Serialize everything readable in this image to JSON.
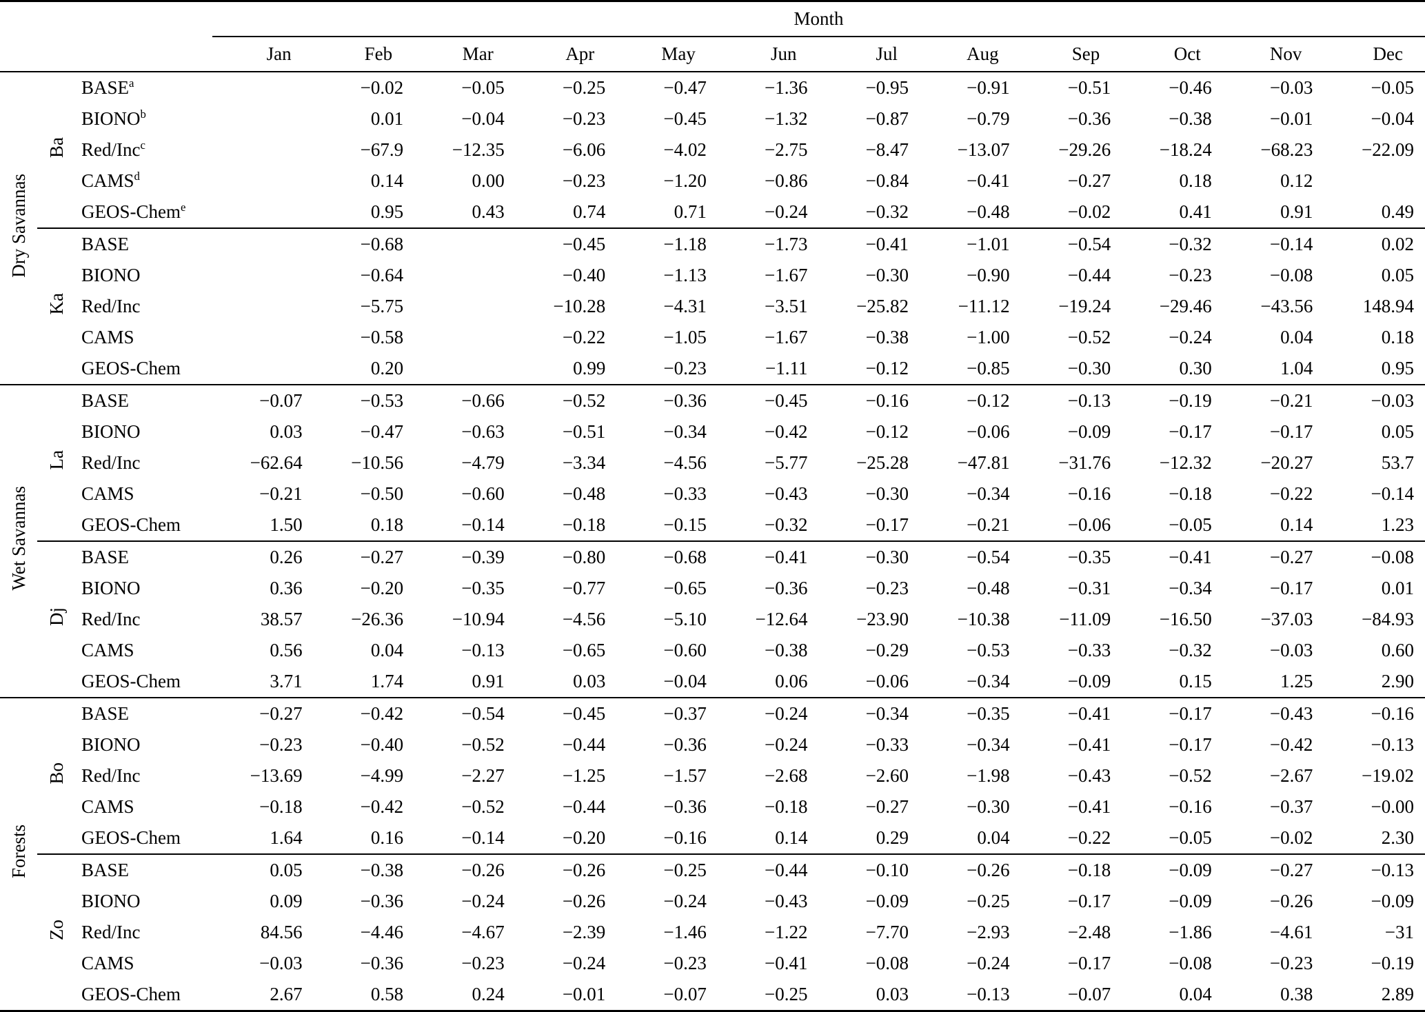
{
  "table": {
    "month_header": "Month",
    "columns": [
      "Jan",
      "Feb",
      "Mar",
      "Apr",
      "May",
      "Jun",
      "Jul",
      "Aug",
      "Sep",
      "Oct",
      "Nov",
      "Dec"
    ],
    "groups": [
      {
        "label": "Dry Savannas",
        "sites": [
          {
            "label": "Ba",
            "rows": [
              {
                "label": "BASE",
                "sup": "a",
                "values": [
                  "",
                  "−0.02",
                  "−0.05",
                  "−0.25",
                  "−0.47",
                  "−1.36",
                  "−0.95",
                  "−0.91",
                  "−0.51",
                  "−0.46",
                  "−0.03",
                  "−0.05"
                ]
              },
              {
                "label": "BIONO",
                "sup": "b",
                "values": [
                  "",
                  "0.01",
                  "−0.04",
                  "−0.23",
                  "−0.45",
                  "−1.32",
                  "−0.87",
                  "−0.79",
                  "−0.36",
                  "−0.38",
                  "−0.01",
                  "−0.04"
                ]
              },
              {
                "label": "Red/Inc",
                "sup": "c",
                "values": [
                  "",
                  "−67.9",
                  "−12.35",
                  "−6.06",
                  "−4.02",
                  "−2.75",
                  "−8.47",
                  "−13.07",
                  "−29.26",
                  "−18.24",
                  "−68.23",
                  "−22.09"
                ]
              },
              {
                "label": "CAMS",
                "sup": "d",
                "values": [
                  "",
                  "0.14",
                  "0.00",
                  "−0.23",
                  "−1.20",
                  "−0.86",
                  "−0.84",
                  "−0.41",
                  "−0.27",
                  "0.18",
                  "0.12",
                  ""
                ]
              },
              {
                "label": "GEOS-Chem",
                "sup": "e",
                "values": [
                  "",
                  "0.95",
                  "0.43",
                  "0.74",
                  "0.71",
                  "−0.24",
                  "−0.32",
                  "−0.48",
                  "−0.02",
                  "0.41",
                  "0.91",
                  "0.49"
                ]
              }
            ]
          },
          {
            "label": "Ka",
            "rows": [
              {
                "label": "BASE",
                "values": [
                  "",
                  "−0.68",
                  "",
                  "−0.45",
                  "−1.18",
                  "−1.73",
                  "−0.41",
                  "−1.01",
                  "−0.54",
                  "−0.32",
                  "−0.14",
                  "0.02"
                ]
              },
              {
                "label": "BIONO",
                "values": [
                  "",
                  "−0.64",
                  "",
                  "−0.40",
                  "−1.13",
                  "−1.67",
                  "−0.30",
                  "−0.90",
                  "−0.44",
                  "−0.23",
                  "−0.08",
                  "0.05"
                ]
              },
              {
                "label": "Red/Inc",
                "values": [
                  "",
                  "−5.75",
                  "",
                  "−10.28",
                  "−4.31",
                  "−3.51",
                  "−25.82",
                  "−11.12",
                  "−19.24",
                  "−29.46",
                  "−43.56",
                  "148.94"
                ]
              },
              {
                "label": "CAMS",
                "values": [
                  "",
                  "−0.58",
                  "",
                  "−0.22",
                  "−1.05",
                  "−1.67",
                  "−0.38",
                  "−1.00",
                  "−0.52",
                  "−0.24",
                  "0.04",
                  "0.18"
                ]
              },
              {
                "label": "GEOS-Chem",
                "values": [
                  "",
                  "0.20",
                  "",
                  "0.99",
                  "−0.23",
                  "−1.11",
                  "−0.12",
                  "−0.85",
                  "−0.30",
                  "0.30",
                  "1.04",
                  "0.95"
                ]
              }
            ]
          }
        ]
      },
      {
        "label": "Wet Savannas",
        "sites": [
          {
            "label": "La",
            "rows": [
              {
                "label": "BASE",
                "values": [
                  "−0.07",
                  "−0.53",
                  "−0.66",
                  "−0.52",
                  "−0.36",
                  "−0.45",
                  "−0.16",
                  "−0.12",
                  "−0.13",
                  "−0.19",
                  "−0.21",
                  "−0.03"
                ]
              },
              {
                "label": "BIONO",
                "values": [
                  "0.03",
                  "−0.47",
                  "−0.63",
                  "−0.51",
                  "−0.34",
                  "−0.42",
                  "−0.12",
                  "−0.06",
                  "−0.09",
                  "−0.17",
                  "−0.17",
                  "0.05"
                ]
              },
              {
                "label": "Red/Inc",
                "values": [
                  "−62.64",
                  "−10.56",
                  "−4.79",
                  "−3.34",
                  "−4.56",
                  "−5.77",
                  "−25.28",
                  "−47.81",
                  "−31.76",
                  "−12.32",
                  "−20.27",
                  "53.7"
                ]
              },
              {
                "label": "CAMS",
                "values": [
                  "−0.21",
                  "−0.50",
                  "−0.60",
                  "−0.48",
                  "−0.33",
                  "−0.43",
                  "−0.30",
                  "−0.34",
                  "−0.16",
                  "−0.18",
                  "−0.22",
                  "−0.14"
                ]
              },
              {
                "label": "GEOS-Chem",
                "values": [
                  "1.50",
                  "0.18",
                  "−0.14",
                  "−0.18",
                  "−0.15",
                  "−0.32",
                  "−0.17",
                  "−0.21",
                  "−0.06",
                  "−0.05",
                  "0.14",
                  "1.23"
                ]
              }
            ]
          },
          {
            "label": "Dj",
            "rows": [
              {
                "label": "BASE",
                "values": [
                  "0.26",
                  "−0.27",
                  "−0.39",
                  "−0.80",
                  "−0.68",
                  "−0.41",
                  "−0.30",
                  "−0.54",
                  "−0.35",
                  "−0.41",
                  "−0.27",
                  "−0.08"
                ]
              },
              {
                "label": "BIONO",
                "values": [
                  "0.36",
                  "−0.20",
                  "−0.35",
                  "−0.77",
                  "−0.65",
                  "−0.36",
                  "−0.23",
                  "−0.48",
                  "−0.31",
                  "−0.34",
                  "−0.17",
                  "0.01"
                ]
              },
              {
                "label": "Red/Inc",
                "values": [
                  "38.57",
                  "−26.36",
                  "−10.94",
                  "−4.56",
                  "−5.10",
                  "−12.64",
                  "−23.90",
                  "−10.38",
                  "−11.09",
                  "−16.50",
                  "−37.03",
                  "−84.93"
                ]
              },
              {
                "label": "CAMS",
                "values": [
                  "0.56",
                  "0.04",
                  "−0.13",
                  "−0.65",
                  "−0.60",
                  "−0.38",
                  "−0.29",
                  "−0.53",
                  "−0.33",
                  "−0.32",
                  "−0.03",
                  "0.60"
                ]
              },
              {
                "label": "GEOS-Chem",
                "values": [
                  "3.71",
                  "1.74",
                  "0.91",
                  "0.03",
                  "−0.04",
                  "0.06",
                  "−0.06",
                  "−0.34",
                  "−0.09",
                  "0.15",
                  "1.25",
                  "2.90"
                ]
              }
            ]
          }
        ]
      },
      {
        "label": "Forests",
        "sites": [
          {
            "label": "Bo",
            "rows": [
              {
                "label": "BASE",
                "values": [
                  "−0.27",
                  "−0.42",
                  "−0.54",
                  "−0.45",
                  "−0.37",
                  "−0.24",
                  "−0.34",
                  "−0.35",
                  "−0.41",
                  "−0.17",
                  "−0.43",
                  "−0.16"
                ]
              },
              {
                "label": "BIONO",
                "values": [
                  "−0.23",
                  "−0.40",
                  "−0.52",
                  "−0.44",
                  "−0.36",
                  "−0.24",
                  "−0.33",
                  "−0.34",
                  "−0.41",
                  "−0.17",
                  "−0.42",
                  "−0.13"
                ]
              },
              {
                "label": "Red/Inc",
                "values": [
                  "−13.69",
                  "−4.99",
                  "−2.27",
                  "−1.25",
                  "−1.57",
                  "−2.68",
                  "−2.60",
                  "−1.98",
                  "−0.43",
                  "−0.52",
                  "−2.67",
                  "−19.02"
                ]
              },
              {
                "label": "CAMS",
                "values": [
                  "−0.18",
                  "−0.42",
                  "−0.52",
                  "−0.44",
                  "−0.36",
                  "−0.18",
                  "−0.27",
                  "−0.30",
                  "−0.41",
                  "−0.16",
                  "−0.37",
                  "−0.00"
                ]
              },
              {
                "label": "GEOS-Chem",
                "values": [
                  "1.64",
                  "0.16",
                  "−0.14",
                  "−0.20",
                  "−0.16",
                  "0.14",
                  "0.29",
                  "0.04",
                  "−0.22",
                  "−0.05",
                  "−0.02",
                  "2.30"
                ]
              }
            ]
          },
          {
            "label": "Zo",
            "rows": [
              {
                "label": "BASE",
                "values": [
                  "0.05",
                  "−0.38",
                  "−0.26",
                  "−0.26",
                  "−0.25",
                  "−0.44",
                  "−0.10",
                  "−0.26",
                  "−0.18",
                  "−0.09",
                  "−0.27",
                  "−0.13"
                ]
              },
              {
                "label": "BIONO",
                "values": [
                  "0.09",
                  "−0.36",
                  "−0.24",
                  "−0.26",
                  "−0.24",
                  "−0.43",
                  "−0.09",
                  "−0.25",
                  "−0.17",
                  "−0.09",
                  "−0.26",
                  "−0.09"
                ]
              },
              {
                "label": "Red/Inc",
                "values": [
                  "84.56",
                  "−4.46",
                  "−4.67",
                  "−2.39",
                  "−1.46",
                  "−1.22",
                  "−7.70",
                  "−2.93",
                  "−2.48",
                  "−1.86",
                  "−4.61",
                  "−31"
                ]
              },
              {
                "label": "CAMS",
                "values": [
                  "−0.03",
                  "−0.36",
                  "−0.23",
                  "−0.24",
                  "−0.23",
                  "−0.41",
                  "−0.08",
                  "−0.24",
                  "−0.17",
                  "−0.08",
                  "−0.23",
                  "−0.19"
                ]
              },
              {
                "label": "GEOS-Chem",
                "values": [
                  "2.67",
                  "0.58",
                  "0.24",
                  "−0.01",
                  "−0.07",
                  "−0.25",
                  "0.03",
                  "−0.13",
                  "−0.07",
                  "0.04",
                  "0.38",
                  "2.89"
                ]
              }
            ]
          }
        ]
      }
    ]
  }
}
